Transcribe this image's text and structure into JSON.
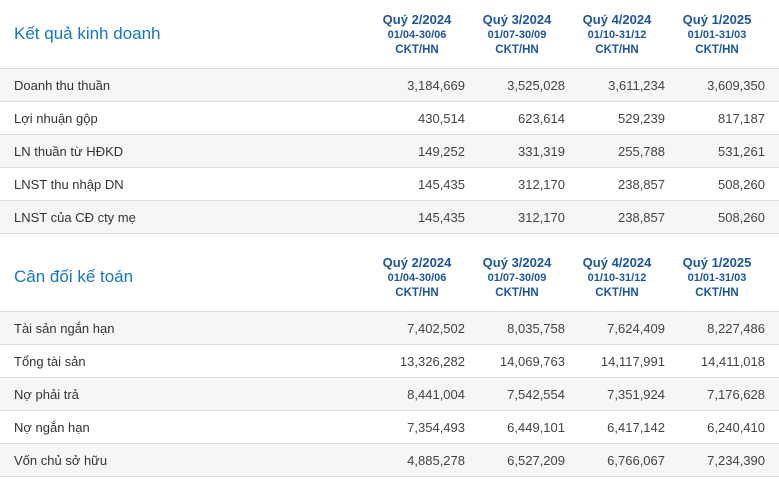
{
  "colors": {
    "section_title": "#1777bd",
    "column_header": "#1d559f",
    "row_label": "#333333",
    "value_text": "#444444",
    "stripe_bg": "#f6f6f6",
    "border": "#dcdcdc"
  },
  "sections": [
    {
      "title": "Kết quả kinh doanh",
      "columns": [
        {
          "period": "Quý 2/2024",
          "range": "01/04-30/06",
          "basis": "CKT/HN"
        },
        {
          "period": "Quý 3/2024",
          "range": "01/07-30/09",
          "basis": "CKT/HN"
        },
        {
          "period": "Quý 4/2024",
          "range": "01/10-31/12",
          "basis": "CKT/HN"
        },
        {
          "period": "Quý 1/2025",
          "range": "01/01-31/03",
          "basis": "CKT/HN"
        }
      ],
      "rows": [
        {
          "label": "Doanh thu thuần",
          "values": [
            "3,184,669",
            "3,525,028",
            "3,611,234",
            "3,609,350"
          ]
        },
        {
          "label": "Lợi nhuận gộp",
          "values": [
            "430,514",
            "623,614",
            "529,239",
            "817,187"
          ]
        },
        {
          "label": "LN thuần từ HĐKD",
          "values": [
            "149,252",
            "331,319",
            "255,788",
            "531,261"
          ]
        },
        {
          "label": "LNST thu nhập DN",
          "values": [
            "145,435",
            "312,170",
            "238,857",
            "508,260"
          ]
        },
        {
          "label": "LNST của CĐ cty mẹ",
          "values": [
            "145,435",
            "312,170",
            "238,857",
            "508,260"
          ]
        }
      ]
    },
    {
      "title": "Cân đối kế toán",
      "columns": [
        {
          "period": "Quý 2/2024",
          "range": "01/04-30/06",
          "basis": "CKT/HN"
        },
        {
          "period": "Quý 3/2024",
          "range": "01/07-30/09",
          "basis": "CKT/HN"
        },
        {
          "period": "Quý 4/2024",
          "range": "01/10-31/12",
          "basis": "CKT/HN"
        },
        {
          "period": "Quý 1/2025",
          "range": "01/01-31/03",
          "basis": "CKT/HN"
        }
      ],
      "rows": [
        {
          "label": "Tài sản ngắn hạn",
          "values": [
            "7,402,502",
            "8,035,758",
            "7,624,409",
            "8,227,486"
          ]
        },
        {
          "label": "Tổng tài sản",
          "values": [
            "13,326,282",
            "14,069,763",
            "14,117,991",
            "14,411,018"
          ]
        },
        {
          "label": "Nợ phải trả",
          "values": [
            "8,441,004",
            "7,542,554",
            "7,351,924",
            "7,176,628"
          ]
        },
        {
          "label": "Nợ ngắn hạn",
          "values": [
            "7,354,493",
            "6,449,101",
            "6,417,142",
            "6,240,410"
          ]
        },
        {
          "label": "Vốn chủ sở hữu",
          "values": [
            "4,885,278",
            "6,527,209",
            "6,766,067",
            "7,234,390"
          ]
        }
      ]
    }
  ]
}
